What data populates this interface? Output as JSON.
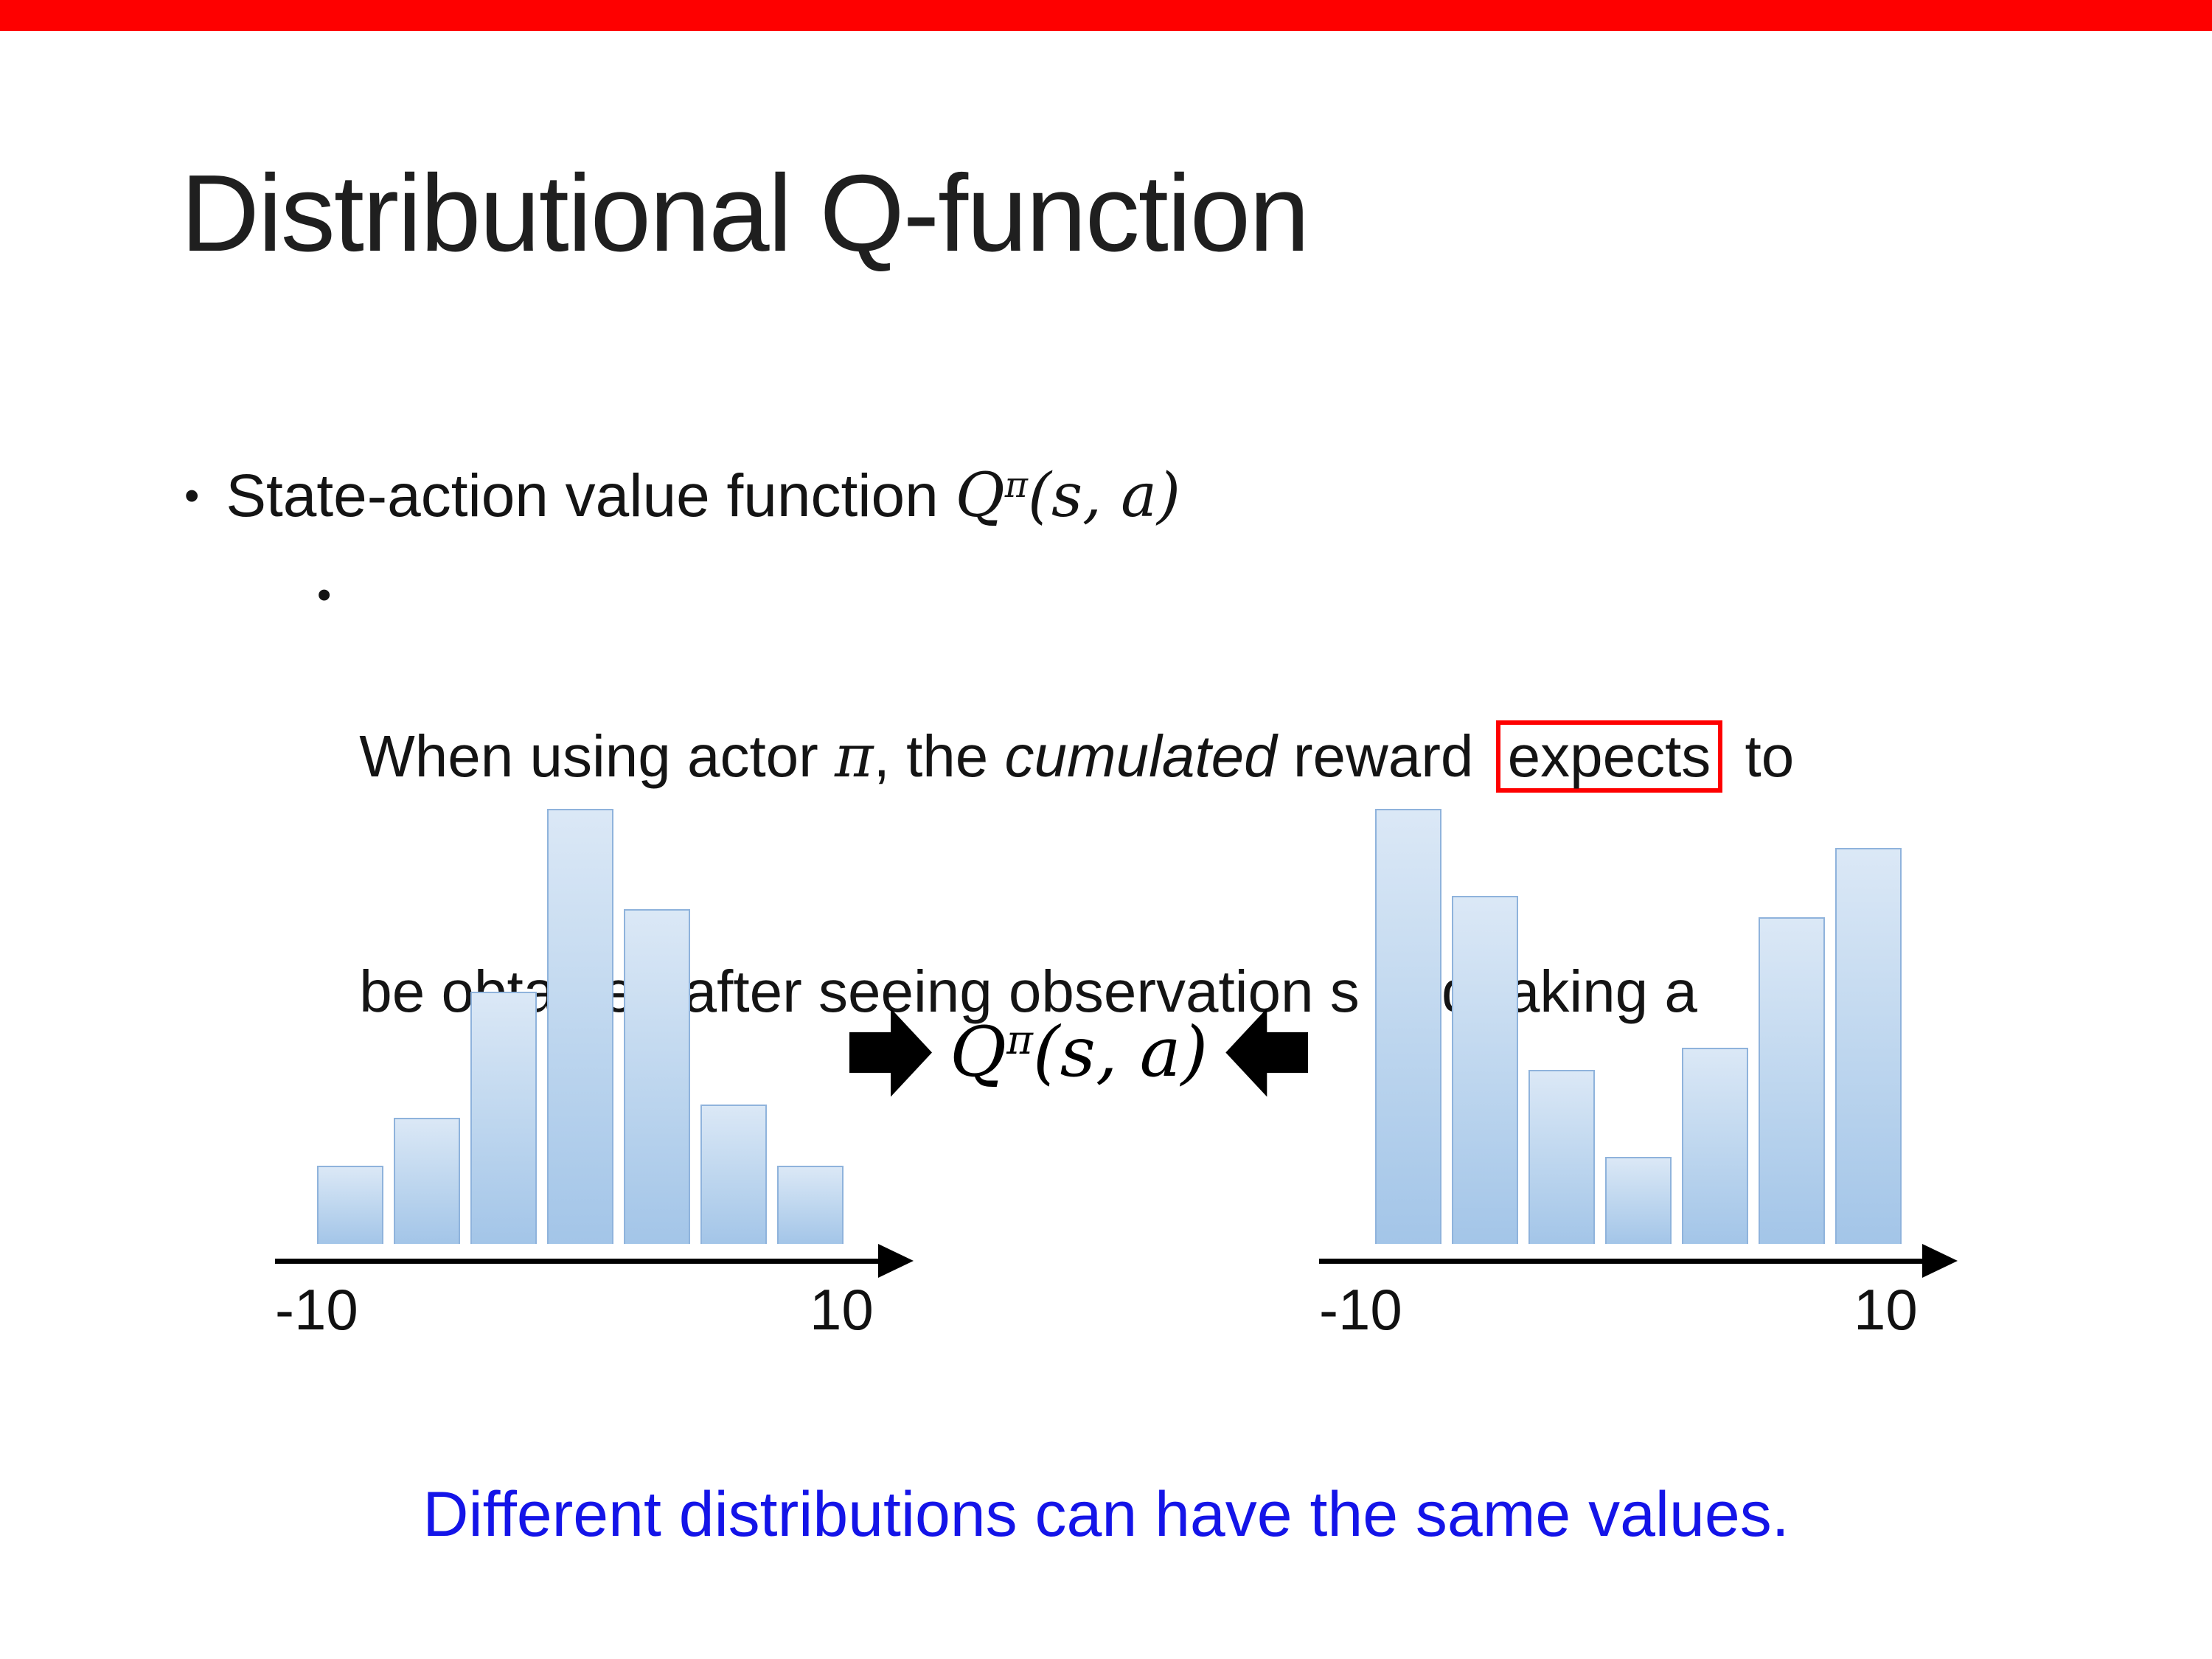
{
  "title": "Distributional Q-function",
  "bullets": {
    "marker": "•",
    "main_text": "State-action value function "
  },
  "math_q": {
    "base": "Q",
    "sup": "π",
    "args": "(s, a)"
  },
  "sub": {
    "marker": "•",
    "line1": [
      "When using actor ",
      "π",
      ", the ",
      "cumulated",
      " reward ",
      "expects",
      " to"
    ],
    "line2": "be obtained after seeing observation s and taking a"
  },
  "footer": {
    "text": "Different distributions can have the same values."
  },
  "colors": {
    "top_bar_red": "#FE0000",
    "highlight_box_red": "#FE0000",
    "footer_blue": "#1414E8",
    "bar_fill_top": "#DBE8F6",
    "bar_fill_bottom": "#A3C5E8",
    "bar_border": "#8FB3DC",
    "arrow_black": "#000000"
  },
  "chart_data": [
    {
      "type": "bar",
      "name": "left-reward-distribution",
      "shape": "unimodal",
      "x_axis": {
        "min_label": "-10",
        "max_label": "10"
      },
      "values": [
        0.18,
        0.29,
        0.58,
        1.0,
        0.77,
        0.32,
        0.18
      ]
    },
    {
      "type": "bar",
      "name": "right-reward-distribution",
      "shape": "bimodal",
      "x_axis": {
        "min_label": "-10",
        "max_label": "10"
      },
      "values": [
        1.0,
        0.8,
        0.4,
        0.2,
        0.45,
        0.75,
        0.91
      ]
    }
  ]
}
